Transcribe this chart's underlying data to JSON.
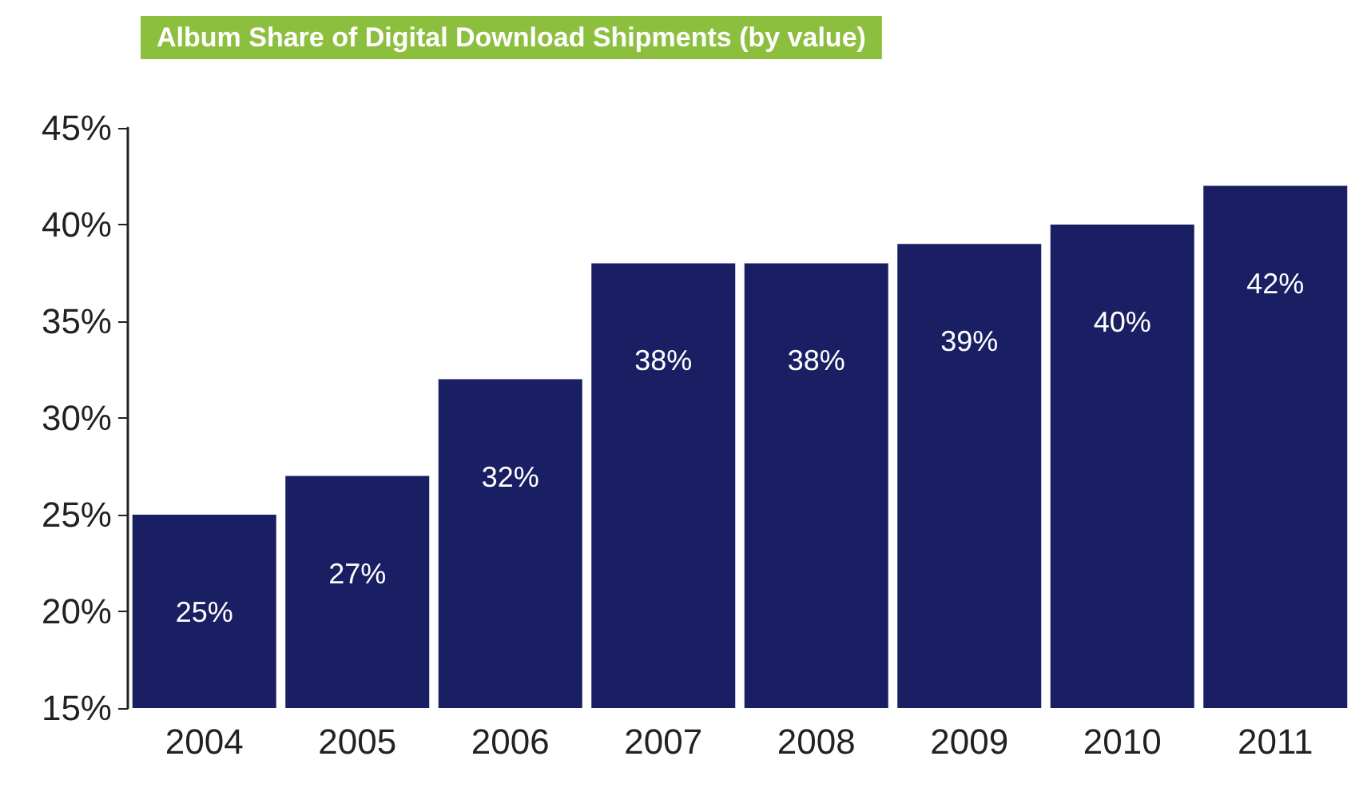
{
  "chart_data": {
    "type": "bar",
    "title": "Album Share of Digital Download Shipments (by value)",
    "categories": [
      "2004",
      "2005",
      "2006",
      "2007",
      "2008",
      "2009",
      "2010",
      "2011"
    ],
    "values": [
      25,
      27,
      32,
      38,
      38,
      39,
      40,
      42
    ],
    "value_labels": [
      "25%",
      "27%",
      "32%",
      "38%",
      "38%",
      "39%",
      "40%",
      "42%"
    ],
    "color": "#1a1f63",
    "ylim": [
      15,
      45
    ],
    "yticks": [
      {
        "value": 15,
        "label": "15%"
      },
      {
        "value": 20,
        "label": "20%"
      },
      {
        "value": 25,
        "label": "25%"
      },
      {
        "value": 30,
        "label": "30%"
      },
      {
        "value": 35,
        "label": "35%"
      },
      {
        "value": 40,
        "label": "40%"
      },
      {
        "value": 45,
        "label": "45%"
      }
    ],
    "grid": false
  }
}
